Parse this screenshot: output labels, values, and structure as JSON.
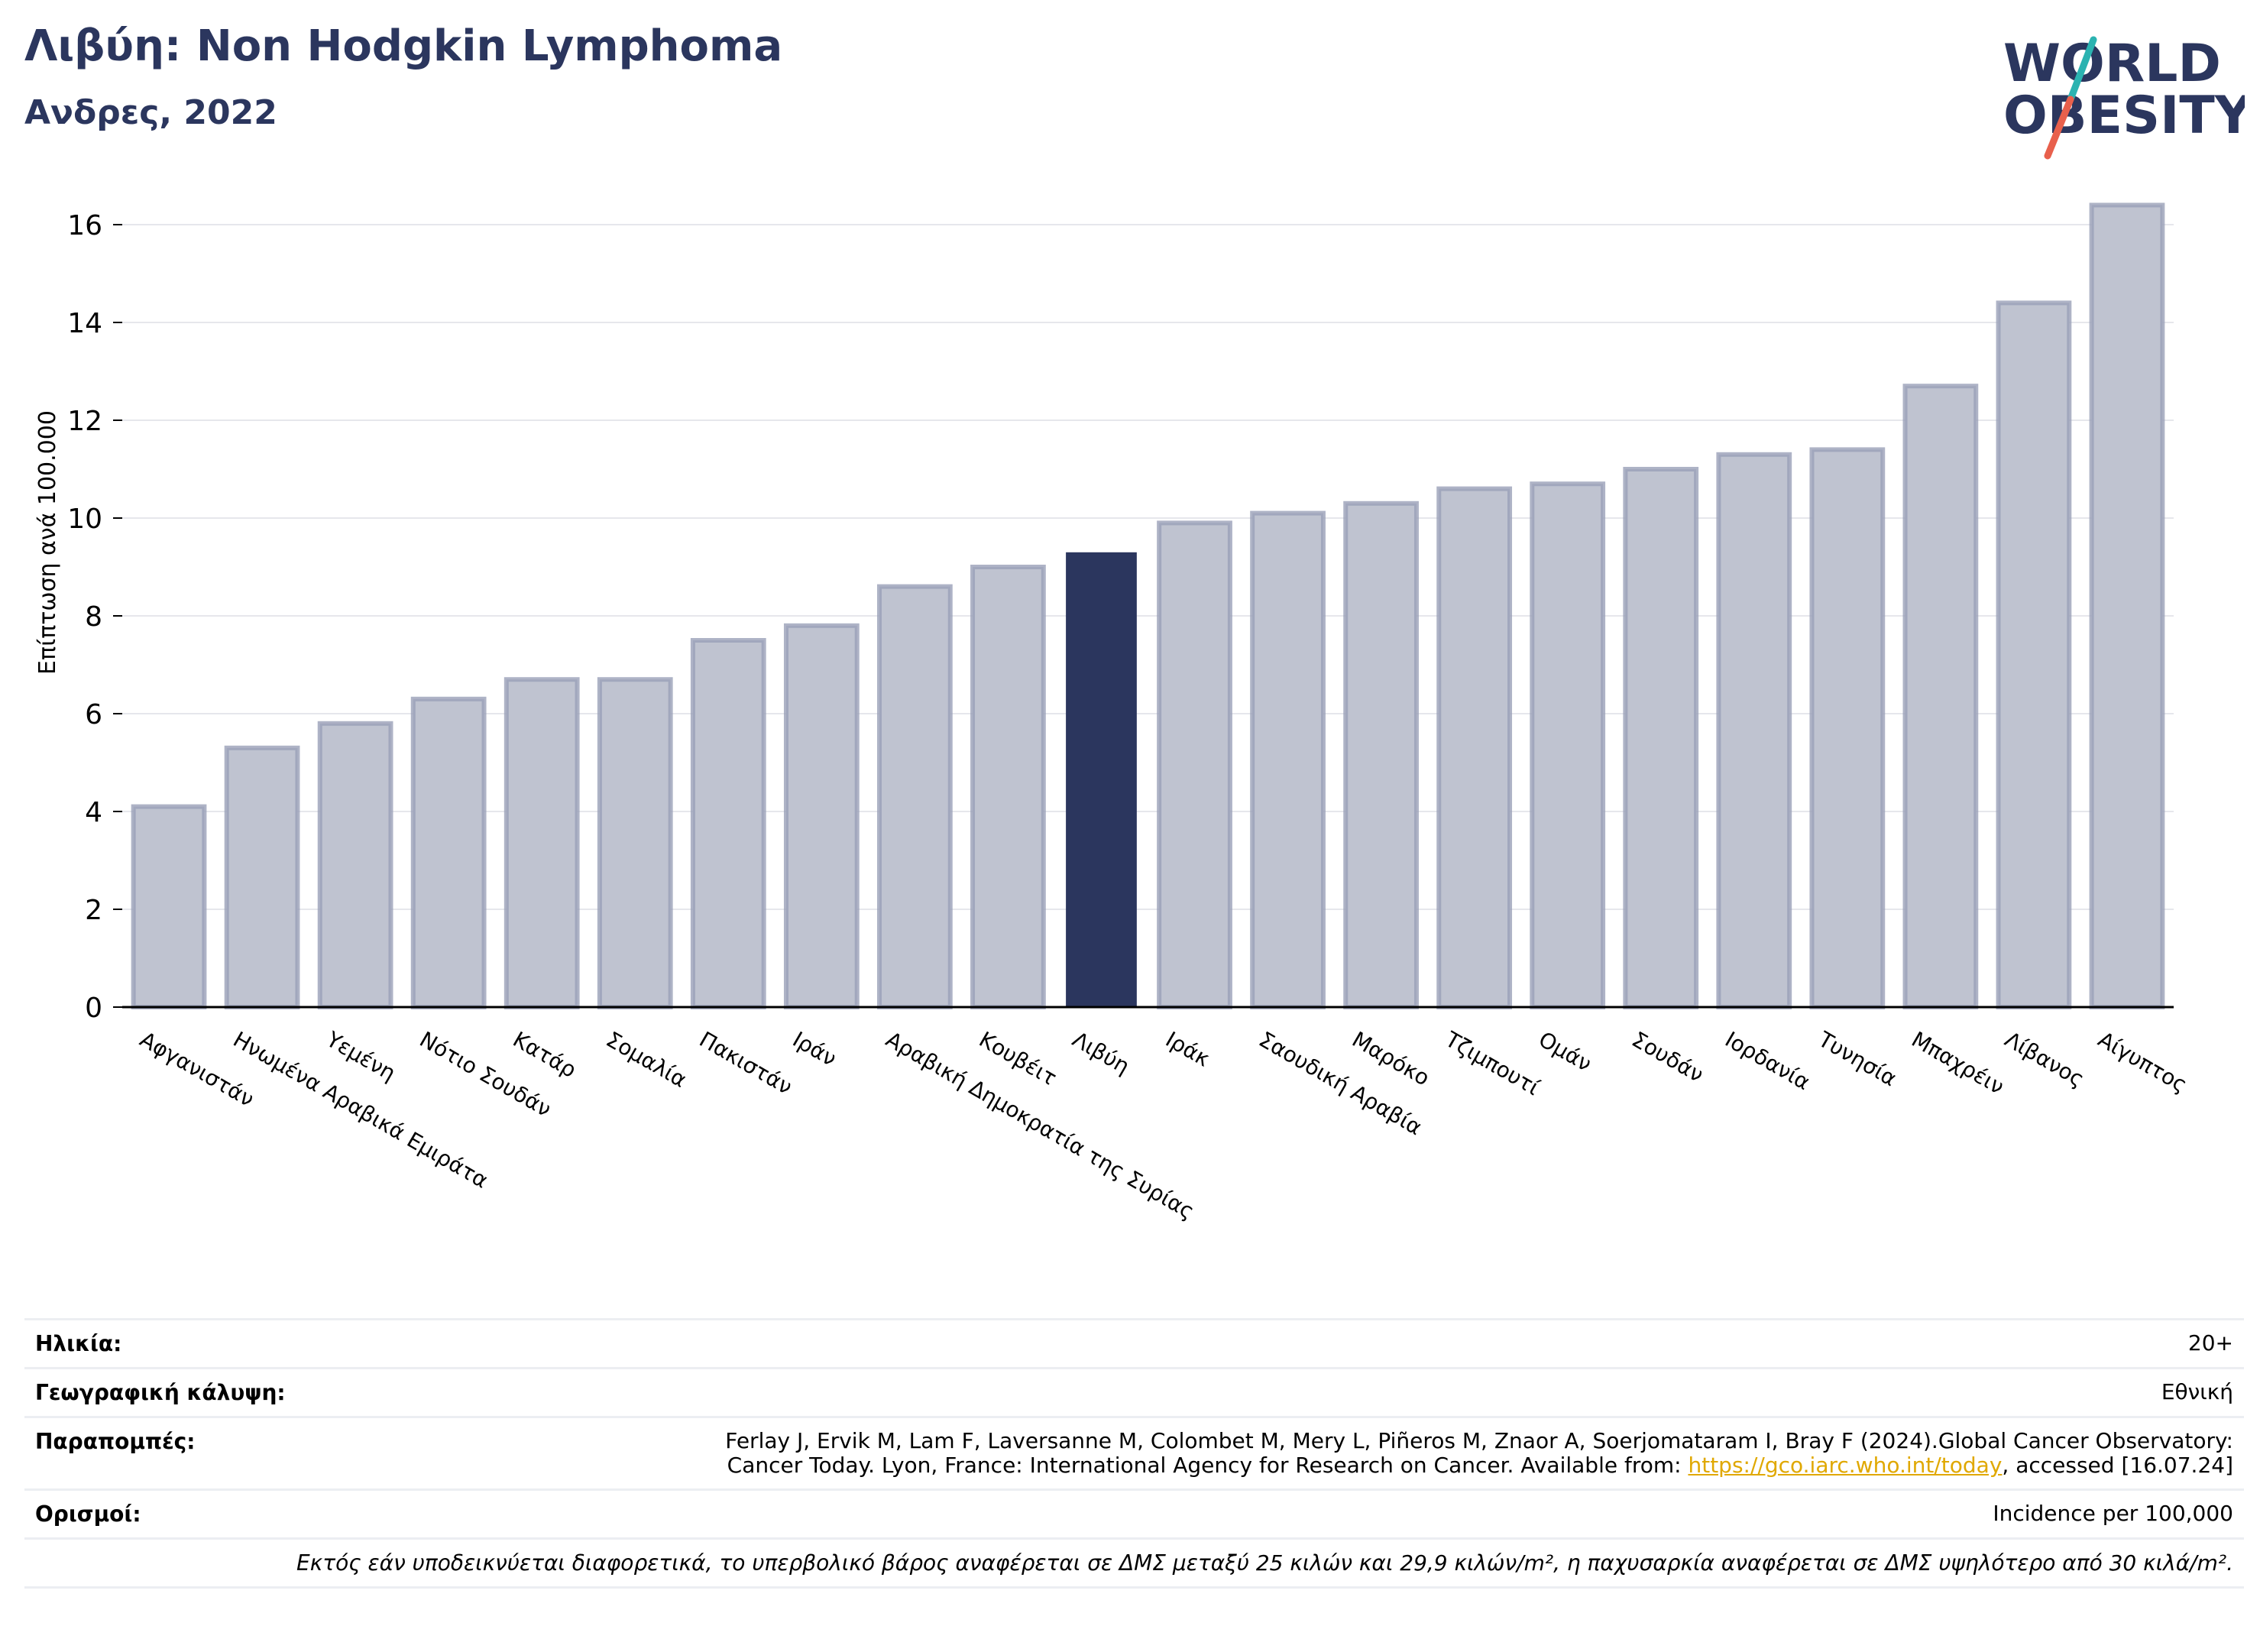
{
  "header": {
    "title": "Λιβύη: Non Hodgkin Lymphoma",
    "subtitle": "Ανδρες, 2022"
  },
  "logo": {
    "line1": "WORLD",
    "line2": "OBESITY",
    "colors": {
      "text": "#2b365e",
      "slash_top": "#2bb3b1",
      "slash_bottom": "#e8604c"
    }
  },
  "colors": {
    "bar": "#bfc3d0",
    "bar_edge": "#9aa0b8",
    "highlight": "#2b365e",
    "grid": "#e6e7ec",
    "link": "#e0a800"
  },
  "chart_data": {
    "type": "bar",
    "title": "",
    "xlabel": "",
    "ylabel": "Επίπτωση ανά 100.000",
    "ylim": [
      0,
      17
    ],
    "yticks": [
      0,
      2,
      4,
      6,
      8,
      10,
      12,
      14,
      16
    ],
    "grid": true,
    "highlight": "Λιβύη",
    "categories": [
      "Αφγανιστάν",
      "Ηνωμένα Αραβικά Εμιράτα",
      "Υεμένη",
      "Νότιο Σουδάν",
      "Κατάρ",
      "Σομαλία",
      "Πακιστάν",
      "Ιράν",
      "Αραβική Δημοκρατία της Συρίας",
      "Κουβέιτ",
      "Λιβύη",
      "Ιράκ",
      "Σαουδική Αραβία",
      "Μαρόκο",
      "Τζιμπουτί",
      "Ομάν",
      "Σουδάν",
      "Ιορδανία",
      "Τυνησία",
      "Μπαχρέιν",
      "Λίβανος",
      "Αίγυπτος"
    ],
    "values": [
      4.1,
      5.3,
      5.8,
      6.3,
      6.7,
      6.7,
      7.5,
      7.8,
      8.6,
      9.0,
      9.3,
      9.9,
      10.1,
      10.3,
      10.6,
      10.7,
      11.0,
      11.3,
      11.4,
      12.7,
      14.4,
      16.4
    ]
  },
  "meta": {
    "age_label": "Ηλικία:",
    "age_value": "20+",
    "coverage_label": "Γεωγραφική κάλυψη:",
    "coverage_value": "Εθνική",
    "refs_label": "Παραπομπές:",
    "refs_line1": "Ferlay J, Ervik M, Lam F, Laversanne M, Colombet M, Mery L, Piñeros M, Znaor A, Soerjomataram I, Bray F (2024).Global Cancer Observatory:",
    "refs_line2_pre": "Cancer Today. Lyon, France: International Agency for Research on Cancer. Available from: ",
    "refs_link": "https://gco.iarc.who.int/today",
    "refs_line2_post": ", accessed [16.07.24]",
    "defs_label": "Ορισμοί:",
    "defs_value": "Incidence per 100,000",
    "note": "Εκτός εάν υποδεικνύεται διαφορετικά, το υπερβολικό βάρος αναφέρεται σε ΔΜΣ μεταξύ 25 κιλών και 29,9 κιλών/m², η παχυσαρκία αναφέρεται σε ΔΜΣ υψηλότερο από 30 κιλά/m²."
  }
}
